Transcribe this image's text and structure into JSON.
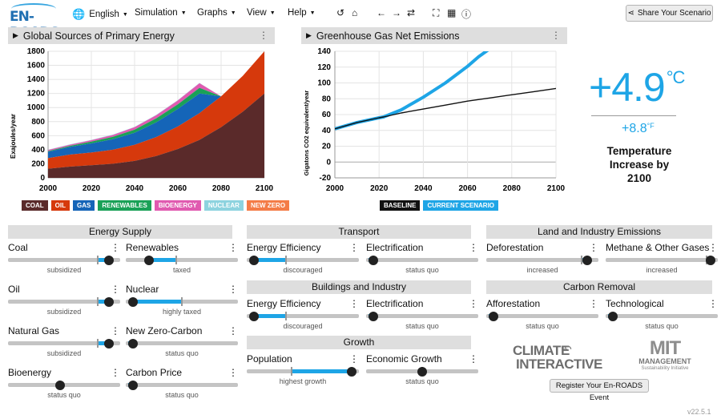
{
  "app": {
    "logo_text": "EN-ROADS"
  },
  "menu": {
    "language": "English",
    "simulation": "Simulation",
    "graphs": "Graphs",
    "view": "View",
    "help": "Help"
  },
  "share_button": "Share Your Scenario",
  "graph1": {
    "title": "Global Sources of Primary Energy",
    "ylabel": "Exajoules/year",
    "yticks": [
      "0",
      "200",
      "400",
      "600",
      "800",
      "1000",
      "1200",
      "1400",
      "1600",
      "1800"
    ],
    "xticks": [
      "2000",
      "2020",
      "2040",
      "2060",
      "2080",
      "2100"
    ],
    "legend": [
      {
        "label": "COAL",
        "color": "#5a2a2a"
      },
      {
        "label": "OIL",
        "color": "#d6390c"
      },
      {
        "label": "GAS",
        "color": "#1565b8"
      },
      {
        "label": "RENEWABLES",
        "color": "#1aa157"
      },
      {
        "label": "BIOENERGY",
        "color": "#e05ab0"
      },
      {
        "label": "NUCLEAR",
        "color": "#8dd3df"
      },
      {
        "label": "NEW ZERO",
        "color": "#f47c47"
      }
    ]
  },
  "graph2": {
    "title": "Greenhouse Gas Net Emissions",
    "ylabel": "Gigatons CO2 equivalent/year",
    "yticks": [
      "-20",
      "0",
      "20",
      "40",
      "60",
      "80",
      "100",
      "120",
      "140"
    ],
    "xticks": [
      "2000",
      "2020",
      "2040",
      "2060",
      "2080",
      "2100"
    ],
    "legend": [
      {
        "label": "BASELINE",
        "color": "#111111"
      },
      {
        "label": "CURRENT SCENARIO",
        "color": "#1ea5e6"
      }
    ]
  },
  "chart_data": [
    {
      "type": "area",
      "title": "Global Sources of Primary Energy",
      "ylabel": "Exajoules/year",
      "xlim": [
        2000,
        2100
      ],
      "ylim": [
        0,
        1800
      ],
      "x": [
        2000,
        2010,
        2020,
        2030,
        2040,
        2050,
        2060,
        2070,
        2080,
        2090,
        2100
      ],
      "series": [
        {
          "name": "COAL",
          "values": [
            130,
            160,
            180,
            200,
            240,
            310,
            410,
            540,
            720,
            940,
            1200
          ]
        },
        {
          "name": "OIL",
          "values": [
            150,
            170,
            180,
            200,
            230,
            270,
            320,
            380,
            440,
            510,
            600
          ]
        },
        {
          "name": "GAS",
          "values": [
            90,
            110,
            130,
            150,
            170,
            210,
            250,
            280,
            0,
            0,
            0
          ]
        },
        {
          "name": "RENEWABLES",
          "values": [
            10,
            15,
            25,
            35,
            45,
            55,
            65,
            80,
            0,
            0,
            0
          ]
        },
        {
          "name": "BIOENERGY",
          "values": [
            15,
            15,
            20,
            25,
            35,
            45,
            55,
            65,
            0,
            0,
            0
          ]
        },
        {
          "name": "NUCLEAR",
          "values": [
            5,
            5,
            5,
            5,
            5,
            5,
            5,
            5,
            0,
            0,
            0
          ]
        },
        {
          "name": "NEW ZERO",
          "values": [
            0,
            0,
            0,
            0,
            0,
            0,
            0,
            0,
            0,
            0,
            0
          ]
        }
      ]
    },
    {
      "type": "line",
      "title": "Greenhouse Gas Net Emissions",
      "ylabel": "Gigatons CO2 equivalent/year",
      "xlim": [
        2000,
        2100
      ],
      "ylim": [
        -20,
        140
      ],
      "series": [
        {
          "name": "BASELINE",
          "x": [
            2000,
            2010,
            2020,
            2022,
            2030,
            2040,
            2050,
            2060,
            2070,
            2080,
            2090,
            2100
          ],
          "values": [
            42,
            50,
            56,
            57,
            62,
            67,
            72,
            77,
            81,
            85,
            89,
            93
          ]
        },
        {
          "name": "CURRENT SCENARIO",
          "x": [
            2000,
            2010,
            2020,
            2022,
            2030,
            2040,
            2050,
            2060,
            2065,
            2070
          ],
          "values": [
            42,
            50,
            56,
            57,
            66,
            82,
            100,
            121,
            133,
            145
          ]
        }
      ]
    }
  ],
  "temperature": {
    "celsius": "+4.9",
    "celsius_unit": "°C",
    "fahrenheit": "+8.8",
    "fahrenheit_unit": "°F",
    "label_line1": "Temperature",
    "label_line2": "Increase by",
    "label_line3": "2100"
  },
  "sections": {
    "energy_supply": "Energy Supply",
    "transport": "Transport",
    "buildings": "Buildings and Industry",
    "growth": "Growth",
    "land": "Land and Industry Emissions",
    "carbon": "Carbon Removal"
  },
  "sliders": {
    "coal": {
      "name": "Coal",
      "status": "subsidized",
      "value": 0.94
    },
    "renewables": {
      "name": "Renewables",
      "status": "taxed",
      "value": 0.18
    },
    "oil": {
      "name": "Oil",
      "status": "subsidized",
      "value": 0.94
    },
    "nuclear": {
      "name": "Nuclear",
      "status": "highly taxed",
      "value": 0.02
    },
    "natural_gas": {
      "name": "Natural Gas",
      "status": "subsidized",
      "value": 0.94
    },
    "new_zero_carbon": {
      "name": "New Zero-Carbon",
      "status": "status quo",
      "value": 0.02
    },
    "bioenergy": {
      "name": "Bioenergy",
      "status": "status quo",
      "value": 0.46
    },
    "carbon_price": {
      "name": "Carbon Price",
      "status": "status quo",
      "value": 0.02
    },
    "transport_efficiency": {
      "name": "Energy Efficiency",
      "status": "discouraged",
      "value": 0.02
    },
    "transport_electrification": {
      "name": "Electrification",
      "status": "status quo",
      "value": 0.02
    },
    "buildings_efficiency": {
      "name": "Energy Efficiency",
      "status": "discouraged",
      "value": 0.02
    },
    "buildings_electrification": {
      "name": "Electrification",
      "status": "status quo",
      "value": 0.02
    },
    "population": {
      "name": "Population",
      "status": "highest growth",
      "value": 0.98
    },
    "economic_growth": {
      "name": "Economic Growth",
      "status": "status quo",
      "value": 0.5
    },
    "deforestation": {
      "name": "Deforestation",
      "status": "increased",
      "value": 0.94
    },
    "methane": {
      "name": "Methane & Other Gases",
      "status": "increased",
      "value": 0.98
    },
    "afforestation": {
      "name": "Afforestation",
      "status": "status quo",
      "value": 0.02
    },
    "technological": {
      "name": "Technological",
      "status": "status quo",
      "value": 0.02
    }
  },
  "logos": {
    "ci_line1": "CLIMATE",
    "ci_line2": "INTERACTIVE",
    "mit_line1": "MIT",
    "mit_line2": "MANAGEMENT",
    "mit_line3": "Sustainability Initiative"
  },
  "register_button": "Register Your En-ROADS Event",
  "version": "v22.5.1"
}
